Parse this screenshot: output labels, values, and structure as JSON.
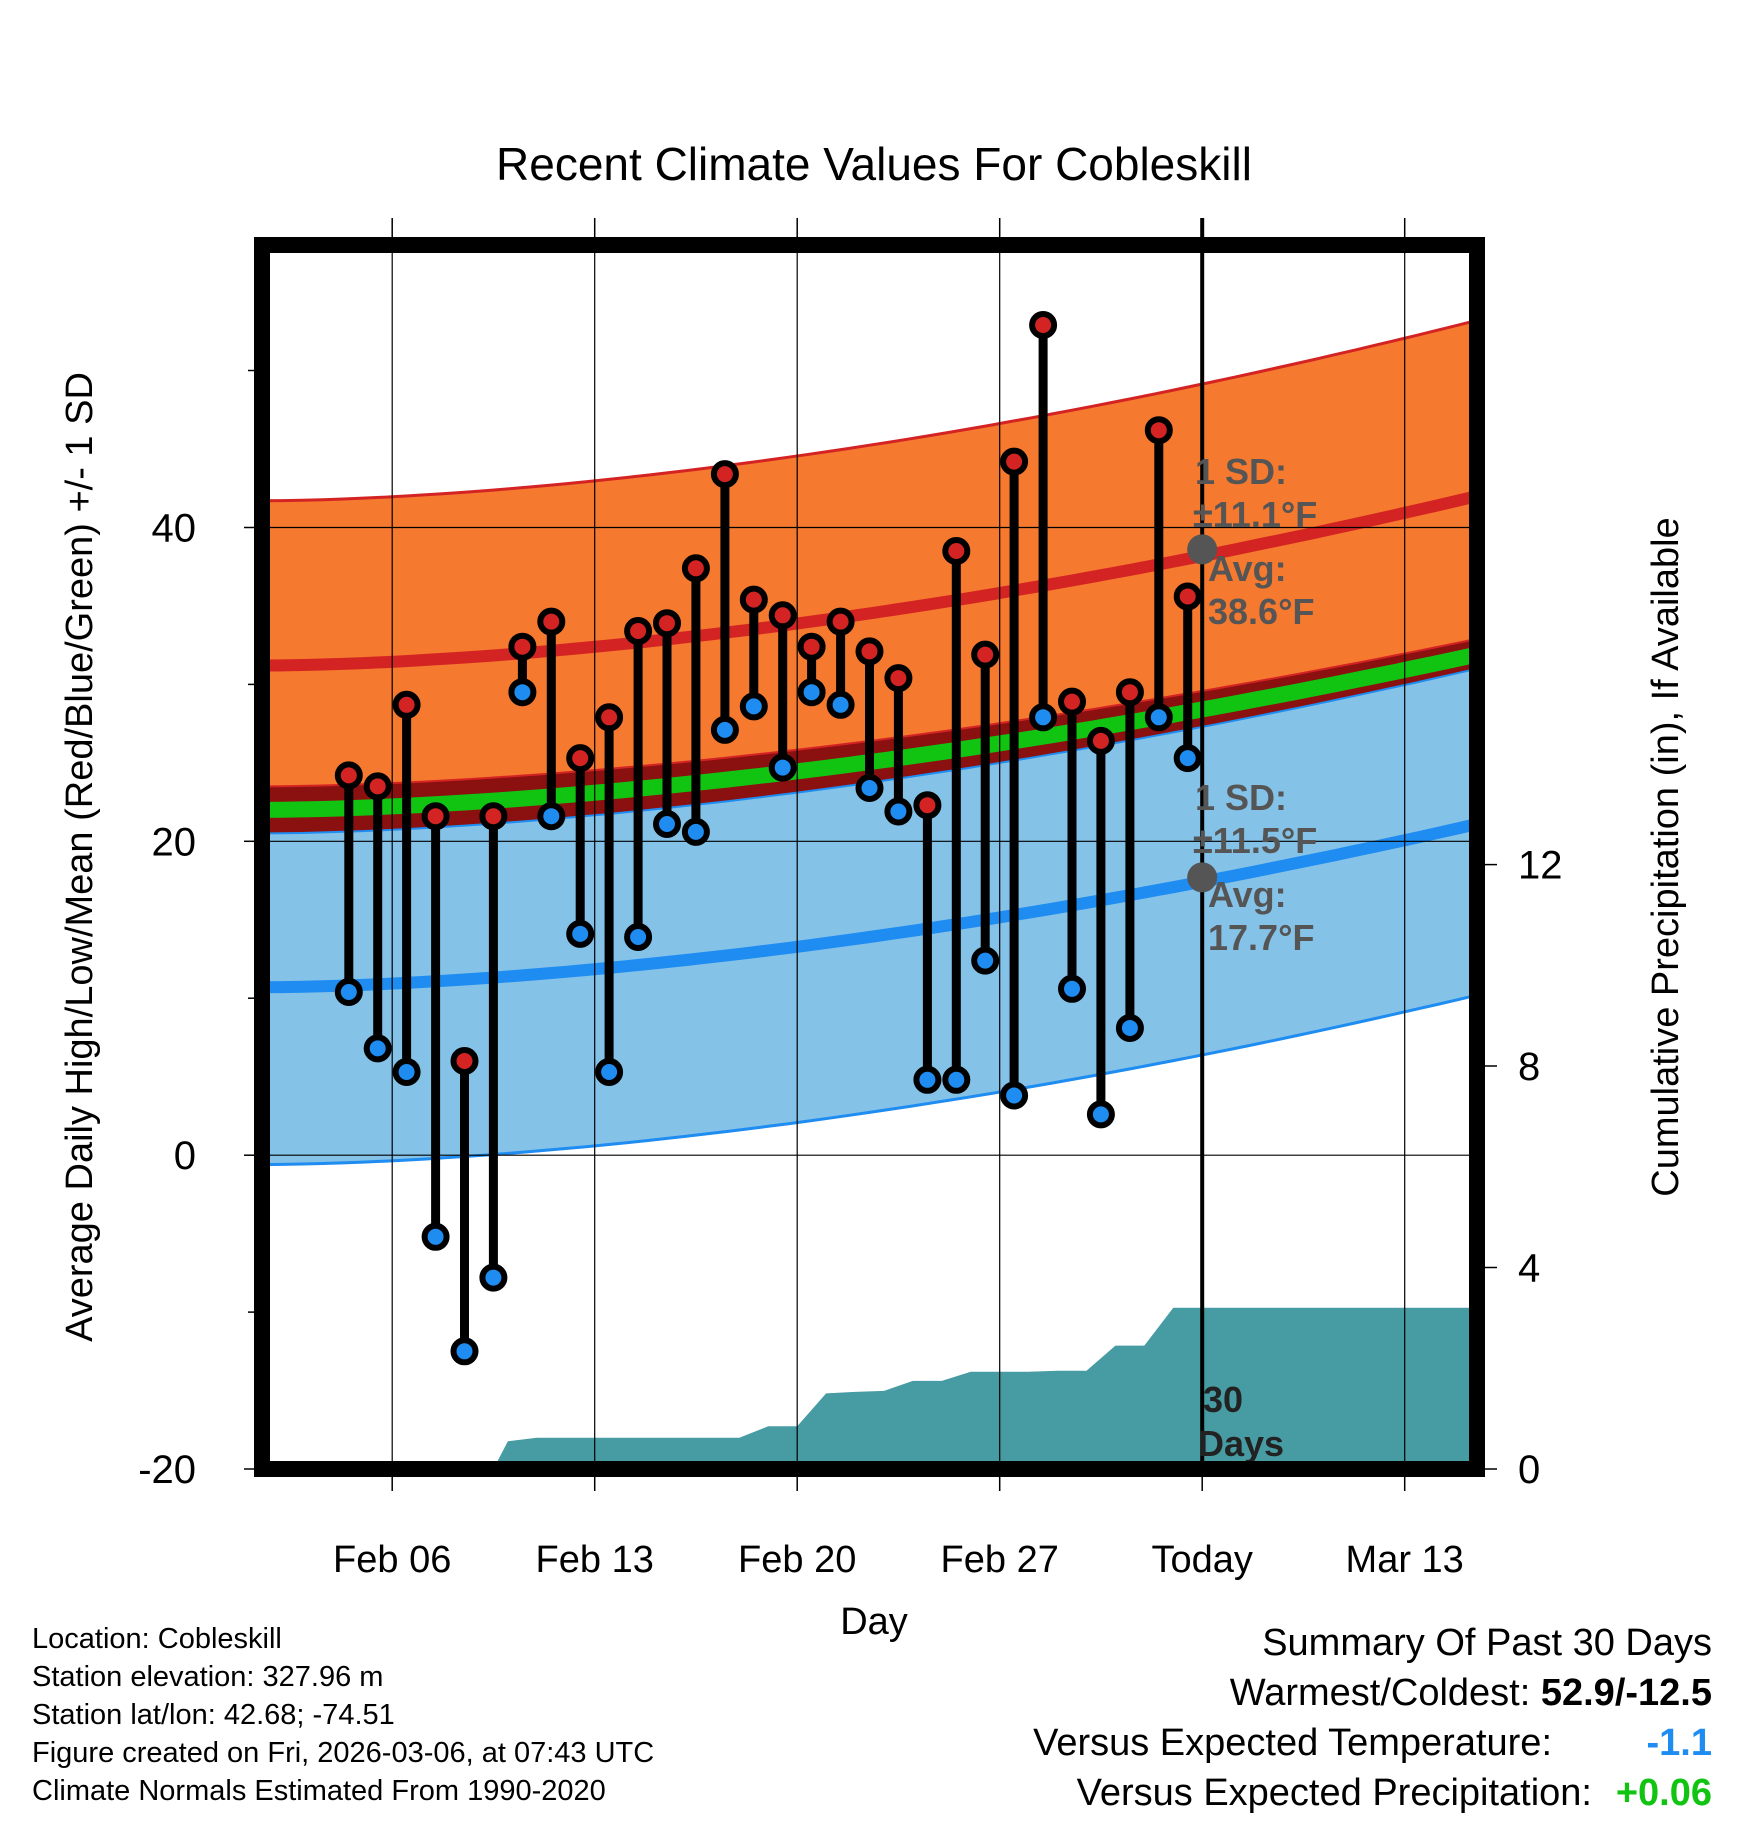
{
  "chart_data": {
    "type": "line",
    "title": "Recent Climate Values For Cobleskill",
    "xlabel": "Day",
    "ylabel": "Average Daily High/Low/Mean (Red/Blue/Green) +/- 1 SD",
    "y2label": "Cumulative Precipitation (in), If Available",
    "x_range_days": [
      -32.5,
      9.5
    ],
    "ylim": [
      -20,
      58
    ],
    "y2lim": [
      0,
      24.3
    ],
    "yticks": [
      -20,
      0,
      20,
      40
    ],
    "y2ticks": [
      0,
      4,
      8,
      12
    ],
    "xticks": [
      {
        "day": -28,
        "label": "Feb 06"
      },
      {
        "day": -21,
        "label": "Feb 13"
      },
      {
        "day": -14,
        "label": "Feb 20"
      },
      {
        "day": -7,
        "label": "Feb 27"
      },
      {
        "day": 0,
        "label": "Today"
      },
      {
        "day": 7,
        "label": "Mar 13"
      }
    ],
    "today_day": 0,
    "normal_high": {
      "start": 31.2,
      "end": 42.0
    },
    "normal_high_upper": {
      "start": 41.7,
      "end": 53.2
    },
    "normal_high_lower": {
      "start": 23.5,
      "end": 32.9
    },
    "normal_low": {
      "start": 10.7,
      "end": 21.1
    },
    "normal_low_upper": {
      "start": 20.5,
      "end": 31.0
    },
    "normal_low_lower": {
      "start": -0.6,
      "end": 10.2
    },
    "normal_mean": {
      "start": 22.0,
      "end": 31.9
    },
    "daily_high": [
      24.2,
      23.5,
      28.7,
      21.6,
      6.0,
      21.6,
      32.4,
      34.0,
      25.3,
      27.9,
      33.4,
      33.9,
      37.4,
      43.4,
      35.4,
      34.4,
      32.4,
      34.0,
      32.1,
      30.4,
      22.3,
      38.5,
      31.9,
      44.2,
      52.9,
      28.9,
      26.4,
      29.5,
      46.2,
      35.6
    ],
    "daily_low": [
      10.4,
      6.8,
      5.3,
      -5.2,
      -12.5,
      -7.8,
      29.5,
      21.6,
      14.1,
      5.3,
      13.9,
      21.1,
      20.6,
      27.1,
      28.6,
      24.7,
      29.5,
      28.7,
      23.4,
      21.9,
      4.8,
      4.8,
      12.4,
      3.8,
      27.9,
      10.6,
      2.6,
      8.1,
      27.9,
      25.3
    ],
    "precip_days": [
      -24.5,
      -24,
      -23,
      -16,
      -15,
      -14,
      -13,
      -12,
      -11,
      -10,
      -9,
      -8,
      -7,
      -6,
      -5,
      -4,
      -3,
      -2,
      -1,
      9.5
    ],
    "precip_cumulative": [
      0,
      0.55,
      0.62,
      0.62,
      0.85,
      0.85,
      1.5,
      1.53,
      1.55,
      1.75,
      1.75,
      1.93,
      1.93,
      1.93,
      1.95,
      1.95,
      2.45,
      2.45,
      3.2,
      3.2
    ],
    "high_sd_label": {
      "line1": "1 SD:",
      "line2": "±11.1°F",
      "line3": "Avg:",
      "line4": "38.6°F",
      "avg": 38.6
    },
    "low_sd_label": {
      "line1": "1 SD:",
      "line2": "±11.5°F",
      "line3": "Avg:",
      "line4": "17.7°F",
      "avg": 17.7
    },
    "precip_label": {
      "line1": "30",
      "line2": "Days"
    },
    "colors": {
      "high_band": "#f5792e",
      "high_line": "#d42323",
      "low_band": "#85c2e8",
      "low_line": "#1e8cf0",
      "mean_line": "#12c412",
      "mean_overlap": "#8b1010",
      "precip": "#479ba3",
      "high_dot": "#d42323",
      "low_dot": "#1e8cf0",
      "avg_dot": "#555555",
      "label_gray": "#555555"
    }
  },
  "info": {
    "location": "Location: Cobleskill",
    "elevation": "Station elevation: 327.96 m",
    "latlon": "Station lat/lon: 42.68; -74.51",
    "created": "Figure created on Fri, 2026-03-06, at 07:43 UTC",
    "normals": "Climate Normals Estimated From 1990-2020"
  },
  "summary": {
    "title": "Summary Of Past 30 Days",
    "warmest_label": "Warmest/Coldest:",
    "warmest_value": "52.9/-12.5",
    "temp_label": "Versus Expected Temperature:",
    "temp_value": "-1.1",
    "temp_color": "#1e8cf0",
    "precip_label": "Versus Expected Precipitation:",
    "precip_value": "+0.06",
    "precip_color": "#12c412"
  }
}
